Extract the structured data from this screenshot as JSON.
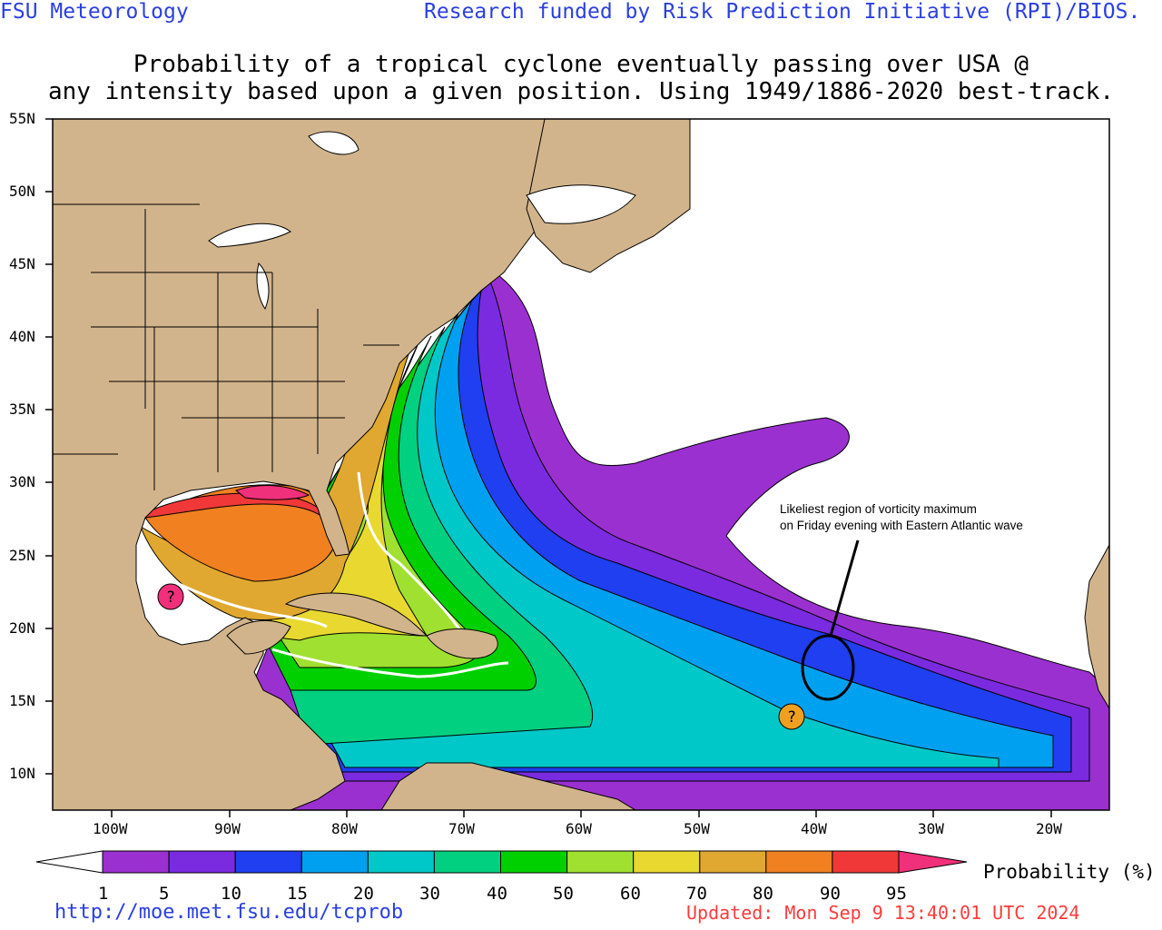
{
  "header": {
    "left": "FSU Meteorology",
    "right": "Research funded by Risk Prediction Initiative (RPI)/BIOS."
  },
  "title": {
    "line1": "Probability of a tropical cyclone eventually passing over USA @",
    "line2": "any intensity based upon a given position.  Using 1949/1886-2020 best-track."
  },
  "map": {
    "lat_labels": [
      "55N",
      "50N",
      "45N",
      "40N",
      "35N",
      "30N",
      "25N",
      "20N",
      "15N",
      "10N"
    ],
    "lon_labels": [
      "100W",
      "90W",
      "80W",
      "70W",
      "60W",
      "50W",
      "40W",
      "30W",
      "20W"
    ],
    "annotation": {
      "line1": "Likeliest region of vorticity maximum",
      "line2": "on Friday evening with Eastern Atlantic wave"
    },
    "markers": [
      {
        "name": "gulf-question-marker",
        "symbol": "?",
        "color": "#f0307a"
      },
      {
        "name": "atlantic-question-marker",
        "symbol": "?",
        "color": "#f0a020"
      }
    ],
    "colors": {
      "land": "#d2b48c",
      "ocean_none": "#ffffff"
    }
  },
  "colorbar": {
    "label": "Probability (%)",
    "ticks": [
      "1",
      "5",
      "10",
      "15",
      "20",
      "30",
      "40",
      "50",
      "60",
      "70",
      "80",
      "90",
      "95"
    ],
    "colors": [
      "#9b30d0",
      "#7a2be0",
      "#1f3ff0",
      "#00a0f0",
      "#00c8c8",
      "#00d080",
      "#00d000",
      "#a0e030",
      "#e8d830",
      "#e0a830",
      "#f08020",
      "#f03838",
      "#f0307a"
    ]
  },
  "footer": {
    "url": "http://moe.met.fsu.edu/tcprob",
    "updated": "Updated: Mon Sep  9 13:40:01 UTC 2024"
  }
}
